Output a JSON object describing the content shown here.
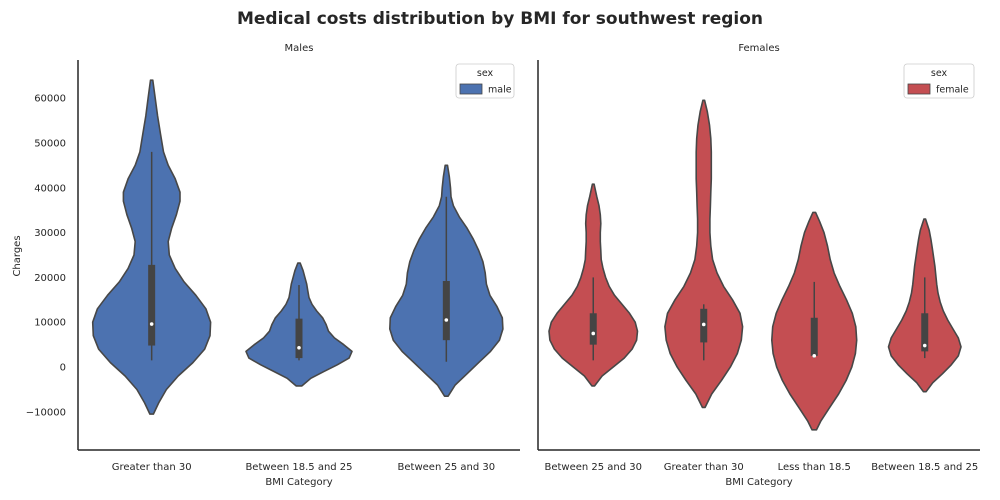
{
  "figure": {
    "title": "Medical costs distribution by BMI for southwest region"
  },
  "chart_data": [
    {
      "type": "violin",
      "panel_title": "Males",
      "xlabel": "BMI Category",
      "ylabel": "Charges",
      "ylim": [
        -18500,
        68500
      ],
      "yticks": [
        -10000,
        0,
        10000,
        20000,
        30000,
        40000,
        50000,
        60000
      ],
      "ytick_labels": [
        "−10000",
        "0",
        "10000",
        "20000",
        "30000",
        "40000",
        "50000",
        "60000"
      ],
      "categories": [
        "Greater than 30",
        "Between 18.5 and 25",
        "Between 25 and 30"
      ],
      "legend": {
        "title": "sex",
        "entries": [
          {
            "label": "male",
            "color": "#4c72b0"
          }
        ],
        "position": "upper right"
      },
      "color": "#4c72b0",
      "violins": [
        {
          "category": "Greater than 30",
          "kde_min": -10500,
          "kde_max": 64000,
          "whisker": [
            1500,
            48000
          ],
          "iqr": [
            4800,
            22800
          ],
          "median": 9600,
          "density": [
            [
              -10500,
              0.03
            ],
            [
              -8000,
              0.12
            ],
            [
              -5000,
              0.25
            ],
            [
              -2000,
              0.45
            ],
            [
              1000,
              0.7
            ],
            [
              4000,
              0.9
            ],
            [
              7000,
              0.99
            ],
            [
              10000,
              1.0
            ],
            [
              13000,
              0.92
            ],
            [
              16000,
              0.75
            ],
            [
              19000,
              0.55
            ],
            [
              22000,
              0.4
            ],
            [
              25000,
              0.3
            ],
            [
              28000,
              0.28
            ],
            [
              31000,
              0.34
            ],
            [
              34000,
              0.42
            ],
            [
              37000,
              0.48
            ],
            [
              39000,
              0.48
            ],
            [
              42000,
              0.4
            ],
            [
              45000,
              0.28
            ],
            [
              48000,
              0.2
            ],
            [
              52000,
              0.15
            ],
            [
              56000,
              0.1
            ],
            [
              60000,
              0.06
            ],
            [
              64000,
              0.02
            ]
          ]
        },
        {
          "category": "Between 18.5 and 25",
          "kde_min": -4200,
          "kde_max": 23200,
          "whisker": [
            1500,
            18300
          ],
          "iqr": [
            2000,
            10800
          ],
          "median": 4300,
          "density": [
            [
              -4200,
              0.05
            ],
            [
              -2500,
              0.2
            ],
            [
              -1000,
              0.42
            ],
            [
              500,
              0.65
            ],
            [
              2000,
              0.85
            ],
            [
              3500,
              0.9
            ],
            [
              5000,
              0.76
            ],
            [
              6500,
              0.6
            ],
            [
              8000,
              0.5
            ],
            [
              9500,
              0.46
            ],
            [
              11000,
              0.4
            ],
            [
              12500,
              0.3
            ],
            [
              14000,
              0.22
            ],
            [
              15500,
              0.17
            ],
            [
              17000,
              0.15
            ],
            [
              18500,
              0.13
            ],
            [
              20000,
              0.1
            ],
            [
              21500,
              0.07
            ],
            [
              23200,
              0.02
            ]
          ]
        },
        {
          "category": "Between 25 and 30",
          "kde_min": -6500,
          "kde_max": 45000,
          "whisker": [
            1200,
            38000
          ],
          "iqr": [
            6000,
            19200
          ],
          "median": 10500,
          "density": [
            [
              -6500,
              0.03
            ],
            [
              -4000,
              0.15
            ],
            [
              -1500,
              0.35
            ],
            [
              1000,
              0.55
            ],
            [
              3500,
              0.75
            ],
            [
              6000,
              0.9
            ],
            [
              8500,
              0.96
            ],
            [
              11000,
              0.95
            ],
            [
              13500,
              0.86
            ],
            [
              16000,
              0.74
            ],
            [
              18500,
              0.68
            ],
            [
              21000,
              0.66
            ],
            [
              23500,
              0.62
            ],
            [
              26000,
              0.55
            ],
            [
              28500,
              0.46
            ],
            [
              31000,
              0.35
            ],
            [
              33500,
              0.22
            ],
            [
              36000,
              0.12
            ],
            [
              38000,
              0.08
            ],
            [
              40000,
              0.07
            ],
            [
              42500,
              0.05
            ],
            [
              45000,
              0.02
            ]
          ]
        }
      ]
    },
    {
      "type": "violin",
      "panel_title": "Females",
      "xlabel": "BMI Category",
      "ylim": [
        -18500,
        68500
      ],
      "categories": [
        "Between 25 and 30",
        "Greater than 30",
        "Less than 18.5",
        "Between 18.5 and 25"
      ],
      "legend": {
        "title": "sex",
        "entries": [
          {
            "label": "female",
            "color": "#c44e52"
          }
        ],
        "position": "upper right"
      },
      "color": "#c44e52",
      "violins": [
        {
          "category": "Between 25 and 30",
          "kde_min": -4200,
          "kde_max": 40800,
          "whisker": [
            1500,
            20000
          ],
          "iqr": [
            5000,
            12000
          ],
          "median": 7500,
          "density": [
            [
              -4200,
              0.03
            ],
            [
              -2000,
              0.2
            ],
            [
              0,
              0.45
            ],
            [
              2000,
              0.7
            ],
            [
              4000,
              0.88
            ],
            [
              6000,
              0.98
            ],
            [
              8000,
              1.0
            ],
            [
              10000,
              0.95
            ],
            [
              12000,
              0.82
            ],
            [
              14000,
              0.65
            ],
            [
              16000,
              0.48
            ],
            [
              18000,
              0.36
            ],
            [
              20000,
              0.28
            ],
            [
              22000,
              0.22
            ],
            [
              24000,
              0.18
            ],
            [
              26000,
              0.17
            ],
            [
              28000,
              0.16
            ],
            [
              30000,
              0.16
            ],
            [
              32000,
              0.17
            ],
            [
              34000,
              0.16
            ],
            [
              36000,
              0.13
            ],
            [
              38000,
              0.08
            ],
            [
              40800,
              0.02
            ]
          ]
        },
        {
          "category": "Greater than 30",
          "kde_min": -9000,
          "kde_max": 59500,
          "whisker": [
            1500,
            14000
          ],
          "iqr": [
            5500,
            13000
          ],
          "median": 9500,
          "density": [
            [
              -9000,
              0.03
            ],
            [
              -6000,
              0.18
            ],
            [
              -3000,
              0.4
            ],
            [
              0,
              0.6
            ],
            [
              3000,
              0.76
            ],
            [
              6000,
              0.85
            ],
            [
              9000,
              0.88
            ],
            [
              12000,
              0.82
            ],
            [
              15000,
              0.65
            ],
            [
              18000,
              0.45
            ],
            [
              21000,
              0.3
            ],
            [
              24000,
              0.2
            ],
            [
              27000,
              0.16
            ],
            [
              30000,
              0.14
            ],
            [
              33000,
              0.14
            ],
            [
              36000,
              0.15
            ],
            [
              39000,
              0.16
            ],
            [
              42000,
              0.17
            ],
            [
              45000,
              0.17
            ],
            [
              48000,
              0.17
            ],
            [
              51000,
              0.16
            ],
            [
              54000,
              0.13
            ],
            [
              57000,
              0.08
            ],
            [
              59500,
              0.02
            ]
          ]
        },
        {
          "category": "Less than 18.5",
          "kde_min": -14000,
          "kde_max": 34500,
          "whisker": [
            2000,
            19000
          ],
          "iqr": [
            2500,
            11000
          ],
          "median": 2500,
          "density": [
            [
              -14000,
              0.05
            ],
            [
              -12000,
              0.15
            ],
            [
              -9000,
              0.35
            ],
            [
              -6000,
              0.55
            ],
            [
              -3000,
              0.72
            ],
            [
              0,
              0.85
            ],
            [
              3000,
              0.93
            ],
            [
              6000,
              0.96
            ],
            [
              9000,
              0.94
            ],
            [
              12000,
              0.86
            ],
            [
              15000,
              0.73
            ],
            [
              18000,
              0.58
            ],
            [
              21000,
              0.45
            ],
            [
              24000,
              0.36
            ],
            [
              27000,
              0.3
            ],
            [
              30000,
              0.22
            ],
            [
              32500,
              0.12
            ],
            [
              34500,
              0.03
            ]
          ]
        },
        {
          "category": "Between 18.5 and 25",
          "kde_min": -5500,
          "kde_max": 33000,
          "whisker": [
            2000,
            20000
          ],
          "iqr": [
            3500,
            12000
          ],
          "median": 4800,
          "density": [
            [
              -5500,
              0.03
            ],
            [
              -3500,
              0.18
            ],
            [
              -1500,
              0.4
            ],
            [
              500,
              0.6
            ],
            [
              2500,
              0.76
            ],
            [
              4500,
              0.82
            ],
            [
              6500,
              0.76
            ],
            [
              8500,
              0.64
            ],
            [
              10500,
              0.52
            ],
            [
              12500,
              0.42
            ],
            [
              14500,
              0.35
            ],
            [
              16500,
              0.3
            ],
            [
              18500,
              0.27
            ],
            [
              20500,
              0.25
            ],
            [
              22500,
              0.23
            ],
            [
              24500,
              0.2
            ],
            [
              26500,
              0.17
            ],
            [
              28500,
              0.14
            ],
            [
              30500,
              0.1
            ],
            [
              33000,
              0.02
            ]
          ]
        }
      ]
    }
  ]
}
